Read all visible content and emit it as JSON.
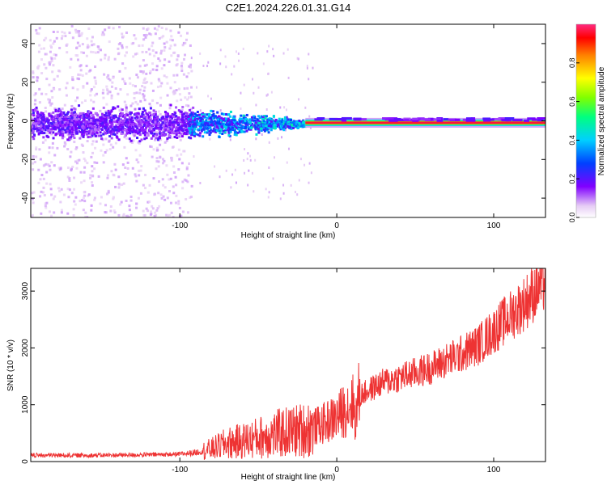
{
  "figure": {
    "title": "C2E1.2024.226.01.31.G14"
  },
  "chart_data": [
    {
      "type": "heatmap",
      "xlabel": "Height of straight line (km)",
      "ylabel": "Frequency (Hz)",
      "xlim": [
        -195,
        133
      ],
      "ylim": [
        -50,
        50
      ],
      "x_ticks": [
        -100,
        0,
        100
      ],
      "y_ticks": [
        -40,
        -20,
        0,
        20,
        40
      ],
      "colorbar": {
        "label": "Normalized spectral amplitude",
        "range": [
          0,
          1
        ],
        "ticks": [
          "0.0",
          "0.2",
          "0.4",
          "0.6",
          "0.8"
        ]
      },
      "description_values": {
        "carrier_frequency_hz": -1,
        "scatter_zone_x_range": [
          -195,
          -95
        ],
        "transition_x_range": [
          -95,
          -20
        ],
        "stable_carrier_x_range": [
          -20,
          133
        ]
      },
      "grid": false
    },
    {
      "type": "line",
      "xlabel": "Height of straight line (km)",
      "ylabel": "SNR (10 * v/v)",
      "xlim": [
        -195,
        133
      ],
      "ylim": [
        0,
        3400
      ],
      "x_ticks": [
        -100,
        0,
        100
      ],
      "y_ticks": [
        0,
        1000,
        2000,
        3000
      ],
      "series": [
        {
          "color": "#ee3333",
          "x": [
            -195,
            -150,
            -120,
            -100,
            -90,
            -80,
            -70,
            -60,
            -50,
            -40,
            -30,
            -20,
            -10,
            0,
            10,
            12,
            14,
            20,
            30,
            40,
            50,
            60,
            70,
            80,
            90,
            100,
            110,
            120,
            133
          ],
          "y": [
            110,
            110,
            120,
            130,
            160,
            220,
            320,
            360,
            420,
            480,
            520,
            560,
            650,
            780,
            1050,
            750,
            1150,
            1250,
            1400,
            1480,
            1560,
            1650,
            1780,
            1900,
            2050,
            2300,
            2550,
            2800,
            3200
          ]
        }
      ],
      "grid": false
    }
  ]
}
